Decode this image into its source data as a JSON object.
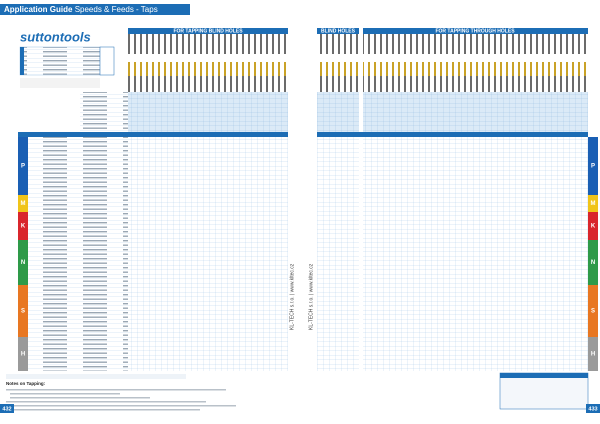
{
  "header": {
    "title": "Application Guide",
    "subtitle": "Speeds & Feeds - Taps"
  },
  "logo": "suttontools",
  "sections": {
    "blind_left": "FOR TAPPING BLIND HOLES",
    "blind_right": "BLIND HOLES",
    "through": "FOR TAPPING THROUGH HOLES"
  },
  "material_groups": [
    "P",
    "M",
    "K",
    "N",
    "S",
    "H"
  ],
  "notes_title": "Notes on Tapping:",
  "footer": {
    "left_page": "432",
    "right_page": "433",
    "vendor": "KL-TECH s.r.o. | www.kltec.cz"
  }
}
